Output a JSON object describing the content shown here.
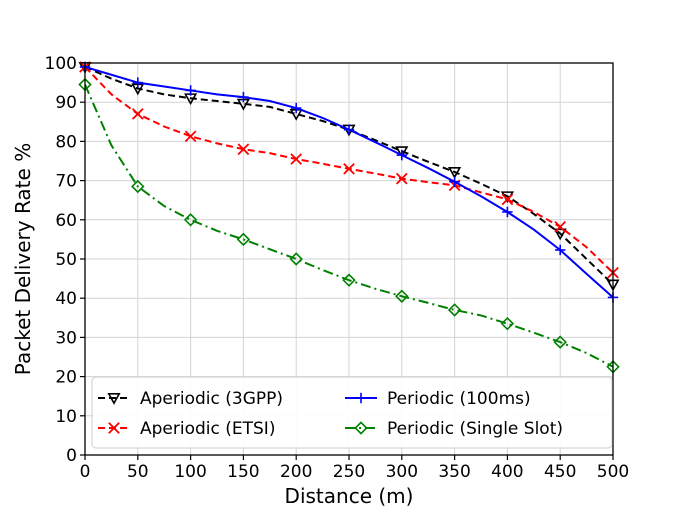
{
  "chart_data": {
    "type": "line",
    "title": "",
    "xlabel": "Distance (m)",
    "ylabel": "Packet Delivery Rate %",
    "xlim": [
      0,
      500
    ],
    "ylim": [
      0,
      100
    ],
    "grid": true,
    "xticks": [
      0,
      50,
      100,
      150,
      200,
      250,
      300,
      350,
      400,
      450,
      500
    ],
    "yticks": [
      0,
      10,
      20,
      30,
      40,
      50,
      60,
      70,
      80,
      90,
      100
    ],
    "xtick_labels": [
      "0",
      "50",
      "100",
      "150",
      "200",
      "250",
      "300",
      "350",
      "400",
      "450",
      "500"
    ],
    "ytick_labels": [
      "0",
      "10",
      "20",
      "30",
      "40",
      "50",
      "60",
      "70",
      "80",
      "90",
      "100"
    ],
    "legend_position": "bottom",
    "series": [
      {
        "name": "Aperiodic (3GPP)",
        "color": "#000000",
        "dash": "dashed",
        "marker": "triangle-down",
        "x": [
          0,
          25,
          50,
          75,
          100,
          125,
          150,
          175,
          200,
          225,
          250,
          275,
          300,
          325,
          350,
          375,
          400,
          425,
          450,
          475,
          500
        ],
        "y": [
          99,
          96,
          93.5,
          92,
          91,
          90.3,
          89.6,
          88.8,
          87,
          85.2,
          83,
          80.3,
          77.5,
          74.8,
          72.2,
          69.2,
          66,
          61.5,
          56.5,
          50,
          43.5
        ]
      },
      {
        "name": "Aperiodic (ETSI)",
        "color": "#ff0000",
        "dash": "dashed",
        "marker": "x",
        "x": [
          0,
          25,
          50,
          75,
          100,
          125,
          150,
          175,
          200,
          225,
          250,
          275,
          300,
          325,
          350,
          375,
          400,
          425,
          450,
          475,
          500
        ],
        "y": [
          99,
          92,
          87,
          83.8,
          81.3,
          79.5,
          78,
          77,
          75.5,
          74.3,
          73,
          71.8,
          70.5,
          69.6,
          68.8,
          67,
          65.2,
          62,
          58.2,
          53,
          46.5
        ]
      },
      {
        "name": "Periodic (100ms)",
        "color": "#0000ff",
        "dash": "solid",
        "marker": "plus",
        "x": [
          0,
          25,
          50,
          75,
          100,
          125,
          150,
          175,
          200,
          225,
          250,
          275,
          300,
          325,
          350,
          375,
          400,
          425,
          450,
          475,
          500
        ],
        "y": [
          99,
          97,
          95,
          94,
          93,
          92,
          91.3,
          90.3,
          88.5,
          86,
          83,
          79.8,
          76.5,
          73.2,
          69.7,
          66,
          62,
          57.5,
          52.3,
          46.2,
          40.2
        ]
      },
      {
        "name": "Periodic (Single Slot)",
        "color": "#008000",
        "dash": "dashdot",
        "marker": "diamond",
        "x": [
          0,
          25,
          50,
          75,
          100,
          125,
          150,
          175,
          200,
          225,
          250,
          275,
          300,
          325,
          350,
          375,
          400,
          425,
          450,
          475,
          500
        ],
        "y": [
          94.5,
          79,
          68.5,
          63.5,
          60,
          57.2,
          55,
          52.5,
          50,
          47.2,
          44.6,
          42.4,
          40.5,
          38.8,
          37,
          35.6,
          33.5,
          31.2,
          28.8,
          26,
          22.5
        ]
      }
    ]
  }
}
